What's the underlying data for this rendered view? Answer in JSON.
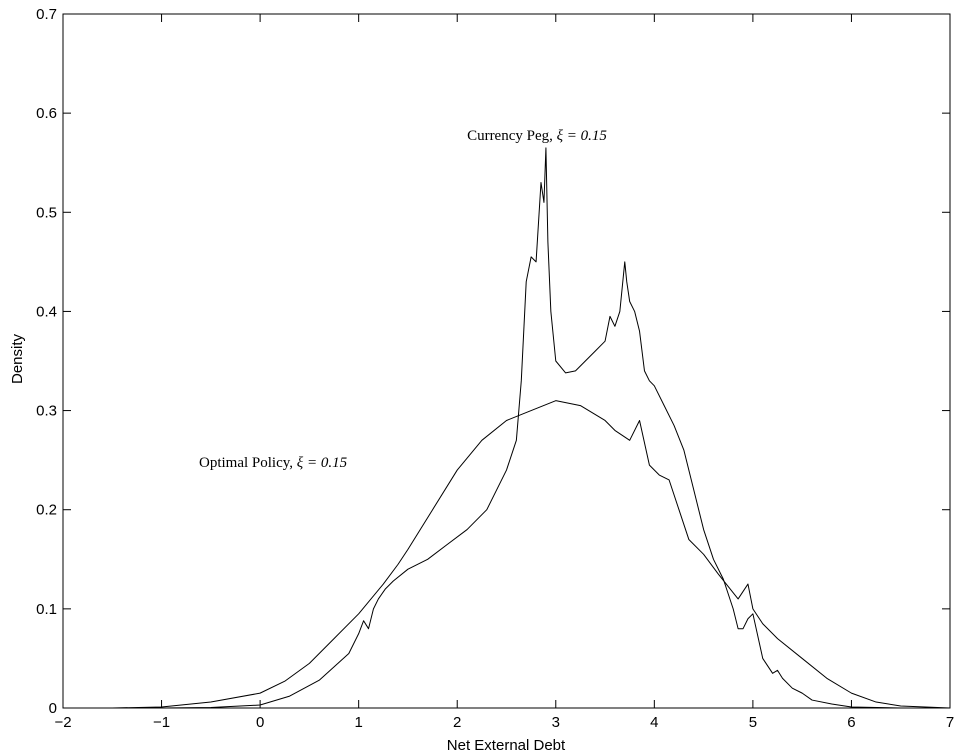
{
  "chart_data": {
    "type": "line",
    "title": "",
    "xlabel": "Net External Debt",
    "ylabel": "Density",
    "xlim": [
      -2,
      7
    ],
    "ylim": [
      0,
      0.7
    ],
    "grid": false,
    "legend": "none",
    "x_ticks": [
      -2,
      -1,
      0,
      1,
      2,
      3,
      4,
      5,
      6,
      7
    ],
    "x_tick_labels": [
      "−2",
      "−1",
      "0",
      "1",
      "2",
      "3",
      "4",
      "5",
      "6",
      "7"
    ],
    "y_ticks": [
      0,
      0.1,
      0.2,
      0.3,
      0.4,
      0.5,
      0.6,
      0.7
    ],
    "y_tick_labels": [
      "0",
      "0.1",
      "0.2",
      "0.3",
      "0.4",
      "0.5",
      "0.6",
      "0.7"
    ],
    "annotations": [
      {
        "prefix": "Currency Peg, ",
        "math": "ξ = 0.15",
        "x": 2.1,
        "y": 0.573
      },
      {
        "prefix": "Optimal Policy, ",
        "math": "ξ = 0.15",
        "x": -0.62,
        "y": 0.243
      }
    ],
    "series": [
      {
        "x": [
          -2.0,
          -1.5,
          -1.0,
          -0.5,
          0.0,
          0.3,
          0.6,
          0.9,
          1.0,
          1.05,
          1.1,
          1.15,
          1.2,
          1.27,
          1.35,
          1.5,
          1.7,
          1.9,
          2.1,
          2.3,
          2.5,
          2.6,
          2.65,
          2.7,
          2.75,
          2.8,
          2.85,
          2.88,
          2.9,
          2.92,
          2.95,
          3.0,
          3.1,
          3.2,
          3.3,
          3.4,
          3.5,
          3.55,
          3.6,
          3.65,
          3.7,
          3.72,
          3.75,
          3.8,
          3.85,
          3.9,
          3.95,
          4.0,
          4.1,
          4.2,
          4.3,
          4.4,
          4.5,
          4.6,
          4.7,
          4.8,
          4.85,
          4.9,
          4.95,
          5.0,
          5.1,
          5.2,
          5.25,
          5.3,
          5.4,
          5.5,
          5.6,
          5.8,
          6.0,
          6.5,
          7.0
        ],
        "y": [
          0.0,
          0.0,
          0.0,
          0.0005,
          0.003,
          0.012,
          0.028,
          0.055,
          0.075,
          0.088,
          0.08,
          0.1,
          0.11,
          0.12,
          0.128,
          0.14,
          0.15,
          0.165,
          0.18,
          0.2,
          0.24,
          0.27,
          0.33,
          0.43,
          0.455,
          0.45,
          0.53,
          0.51,
          0.565,
          0.47,
          0.4,
          0.35,
          0.338,
          0.34,
          0.35,
          0.36,
          0.37,
          0.395,
          0.385,
          0.4,
          0.45,
          0.43,
          0.41,
          0.4,
          0.38,
          0.34,
          0.33,
          0.325,
          0.305,
          0.285,
          0.26,
          0.22,
          0.18,
          0.15,
          0.13,
          0.1,
          0.08,
          0.08,
          0.09,
          0.095,
          0.05,
          0.035,
          0.038,
          0.03,
          0.02,
          0.015,
          0.008,
          0.004,
          0.001,
          0.0,
          0.0
        ]
      },
      {
        "x": [
          -2.0,
          -1.5,
          -1.0,
          -0.5,
          0.0,
          0.25,
          0.5,
          0.75,
          1.0,
          1.25,
          1.4,
          1.5,
          1.75,
          2.0,
          2.25,
          2.5,
          2.75,
          3.0,
          3.25,
          3.5,
          3.6,
          3.75,
          3.85,
          3.95,
          4.05,
          4.15,
          4.25,
          4.35,
          4.5,
          4.65,
          4.85,
          4.95,
          5.0,
          5.1,
          5.25,
          5.5,
          5.75,
          6.0,
          6.25,
          6.5,
          7.0
        ],
        "y": [
          0.0,
          0.0,
          0.001,
          0.006,
          0.015,
          0.027,
          0.045,
          0.07,
          0.095,
          0.125,
          0.145,
          0.16,
          0.2,
          0.24,
          0.27,
          0.29,
          0.3,
          0.31,
          0.305,
          0.29,
          0.28,
          0.27,
          0.29,
          0.245,
          0.235,
          0.23,
          0.2,
          0.17,
          0.155,
          0.135,
          0.11,
          0.125,
          0.1,
          0.085,
          0.07,
          0.05,
          0.03,
          0.015,
          0.006,
          0.002,
          0.0
        ]
      }
    ]
  }
}
